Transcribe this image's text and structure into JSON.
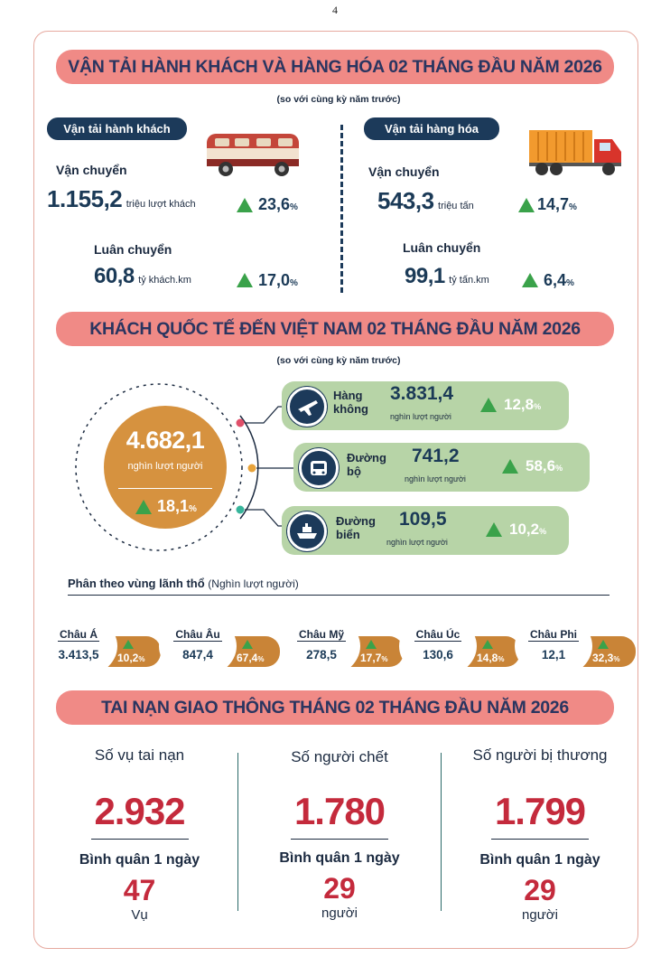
{
  "page_number": "4",
  "transport": {
    "title": "VẬN TẢI HÀNH KHÁCH VÀ HÀNG HÓA 02 THÁNG ĐẦU NĂM 2026",
    "subtitle": "(so với cùng kỳ năm trước)",
    "passenger": {
      "pill": "Vận tải hành khách",
      "carry_label": "Vận chuyển",
      "carry_value": "1.155,2",
      "carry_unit": "triệu lượt khách",
      "carry_pct": "23,6",
      "rotate_label": "Luân chuyển",
      "rotate_value": "60,8",
      "rotate_unit": "tỷ khách.km",
      "rotate_pct": "17,0"
    },
    "freight": {
      "pill": "Vận tải hàng hóa",
      "carry_label": "Vận chuyển",
      "carry_value": "543,3",
      "carry_unit": "triệu tấn",
      "carry_pct": "14,7",
      "rotate_label": "Luân chuyển",
      "rotate_value": "99,1",
      "rotate_unit": "tỷ tấn.km",
      "rotate_pct": "6,4"
    },
    "pct_sign": "%"
  },
  "visitors": {
    "title": "KHÁCH QUỐC TẾ ĐẾN VIỆT NAM 02 THÁNG ĐẦU NĂM 2026",
    "subtitle": "(so với cùng kỳ năm trước)",
    "total_value": "4.682,1",
    "total_unit": "nghìn lượt người",
    "total_pct": "18,1",
    "modes": [
      {
        "name_1": "Hàng",
        "name_2": "không",
        "value": "3.831,4",
        "unit": "nghìn lượt người",
        "pct": "12,8"
      },
      {
        "name_1": "Đường",
        "name_2": "bộ",
        "value": "741,2",
        "unit": "nghìn lượt người",
        "pct": "58,6"
      },
      {
        "name_1": "Đường",
        "name_2": "biển",
        "value": "109,5",
        "unit": "nghìn lượt người",
        "pct": "10,2"
      }
    ],
    "region_heading": "Phân theo vùng lãnh thổ",
    "region_heading_unit": "(Nghìn lượt người)",
    "regions": [
      {
        "name": "Châu Á",
        "value": "3.413,5",
        "pct": "10,2"
      },
      {
        "name": "Châu Âu",
        "value": "847,4",
        "pct": "67,4"
      },
      {
        "name": "Châu Mỹ",
        "value": "278,5",
        "pct": "17,7"
      },
      {
        "name": "Châu Úc",
        "value": "130,6",
        "pct": "14,8"
      },
      {
        "name": "Châu Phi",
        "value": "12,1",
        "pct": "32,3"
      }
    ]
  },
  "accidents": {
    "title": "TAI NẠN GIAO THÔNG THÁNG 02 THÁNG ĐẦU NĂM 2026",
    "avg_label": "Bình quân 1 ngày",
    "items": [
      {
        "heading": "Số vụ tai nạn",
        "value": "2.932",
        "per_day": "47",
        "unit": "Vụ"
      },
      {
        "heading": "Số người chết",
        "value": "1.780",
        "per_day": "29",
        "unit": "người"
      },
      {
        "heading": "Số người bị thương",
        "value": "1.799",
        "per_day": "29",
        "unit": "người"
      }
    ]
  },
  "colors": {
    "banner": "#f08a86",
    "navy": "#1c3a5a",
    "green_box": "#b7d4a7",
    "orange": "#d6923f",
    "red_number": "#c42a3c",
    "triangle": "#3aa24a"
  }
}
